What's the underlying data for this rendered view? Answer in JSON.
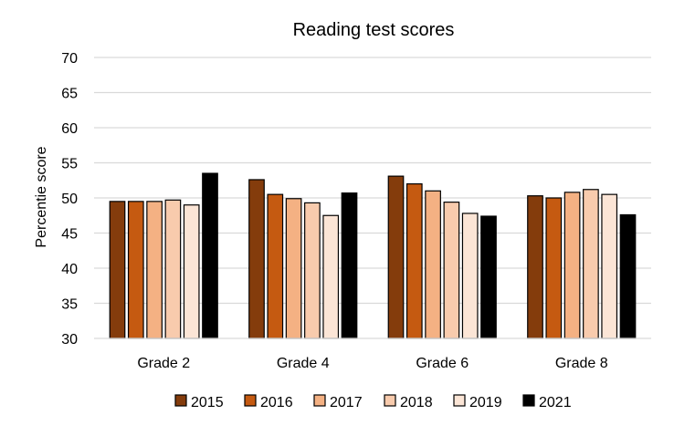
{
  "chart_data": {
    "type": "bar",
    "title": "Reading test scores",
    "xlabel": "",
    "ylabel": "Percentie score",
    "categories": [
      "Grade 2",
      "Grade 4",
      "Grade 6",
      "Grade 8"
    ],
    "ylim": [
      30,
      70
    ],
    "yticks": [
      30,
      35,
      40,
      45,
      50,
      55,
      60,
      65,
      70
    ],
    "grid": true,
    "legend_position": "bottom",
    "series": [
      {
        "name": "2015",
        "color": "#843C0C",
        "values": [
          49.5,
          52.6,
          53.1,
          50.3
        ]
      },
      {
        "name": "2016",
        "color": "#C55A11",
        "values": [
          49.5,
          50.5,
          52.0,
          50.0
        ]
      },
      {
        "name": "2017",
        "color": "#F4B183",
        "values": [
          49.5,
          49.9,
          51.0,
          50.8
        ]
      },
      {
        "name": "2018",
        "color": "#F8CBAD",
        "values": [
          49.7,
          49.3,
          49.4,
          51.2
        ]
      },
      {
        "name": "2019",
        "color": "#FBE5D6",
        "values": [
          49.0,
          47.5,
          47.8,
          50.5
        ]
      },
      {
        "name": "2021",
        "color": "#000000",
        "values": [
          53.5,
          50.7,
          47.4,
          47.6
        ]
      }
    ]
  }
}
